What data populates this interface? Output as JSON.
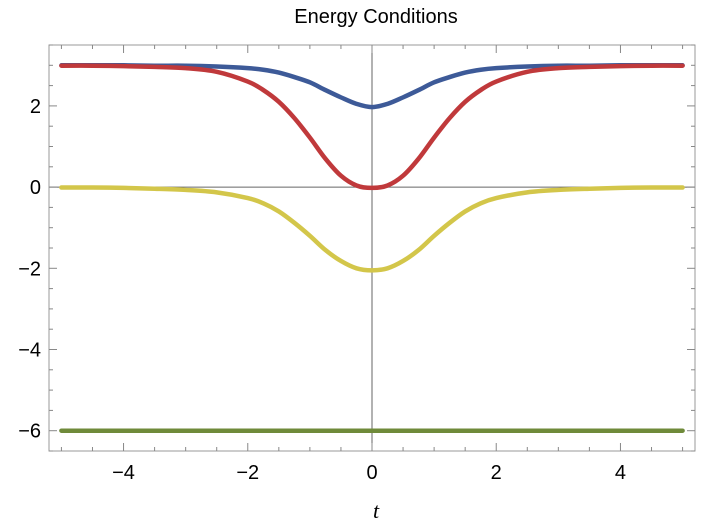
{
  "chart_data": {
    "type": "line",
    "title": "Energy Conditions",
    "xlabel": "t",
    "ylabel": "",
    "xlim": [
      -5.2,
      5.2
    ],
    "ylim": [
      -6.5,
      3.5
    ],
    "x_ticks": [
      -4,
      -2,
      0,
      2,
      4
    ],
    "x_tick_labels": [
      "−4",
      "−2",
      "0",
      "2",
      "4"
    ],
    "y_ticks": [
      -6,
      -4,
      -2,
      0,
      2
    ],
    "y_tick_labels": [
      "−6",
      "−4",
      "−2",
      "0",
      "2"
    ],
    "grid": false,
    "legend": "none",
    "x": [
      -5,
      -4.5,
      -4,
      -3.5,
      -3,
      -2.5,
      -2,
      -1.75,
      -1.5,
      -1.25,
      -1,
      -0.75,
      -0.5,
      -0.25,
      0,
      0.25,
      0.5,
      0.75,
      1,
      1.25,
      1.5,
      1.75,
      2,
      2.5,
      3,
      3.5,
      4,
      4.5,
      5
    ],
    "series": [
      {
        "color": "#3d5a98",
        "values": [
          3,
          3,
          3,
          2.99,
          2.99,
          2.97,
          2.93,
          2.89,
          2.82,
          2.71,
          2.58,
          2.39,
          2.21,
          2.05,
          1.97,
          2.05,
          2.21,
          2.39,
          2.58,
          2.71,
          2.82,
          2.89,
          2.93,
          2.97,
          2.99,
          2.99,
          3,
          3,
          3
        ]
      },
      {
        "color": "#c0393b",
        "values": [
          2.99,
          2.99,
          2.98,
          2.96,
          2.93,
          2.84,
          2.6,
          2.39,
          2.1,
          1.7,
          1.22,
          0.7,
          0.28,
          0.04,
          -0.02,
          0.04,
          0.28,
          0.7,
          1.22,
          1.7,
          2.1,
          2.39,
          2.6,
          2.84,
          2.93,
          2.96,
          2.98,
          2.99,
          2.99
        ]
      },
      {
        "color": "#d3c64a",
        "values": [
          -0.01,
          -0.01,
          -0.02,
          -0.04,
          -0.07,
          -0.13,
          -0.27,
          -0.4,
          -0.6,
          -0.88,
          -1.2,
          -1.55,
          -1.82,
          -2,
          -2.05,
          -2,
          -1.82,
          -1.55,
          -1.2,
          -0.88,
          -0.6,
          -0.4,
          -0.27,
          -0.13,
          -0.07,
          -0.04,
          -0.02,
          -0.01,
          -0.01
        ]
      },
      {
        "color": "#6f8a3a",
        "values": [
          -6,
          -6,
          -6,
          -6,
          -6,
          -6,
          -6,
          -6,
          -6,
          -6,
          -6,
          -6,
          -6,
          -6,
          -6,
          -6,
          -6,
          -6,
          -6,
          -6,
          -6,
          -6,
          -6,
          -6,
          -6,
          -6,
          -6,
          -6,
          -6
        ]
      }
    ]
  }
}
